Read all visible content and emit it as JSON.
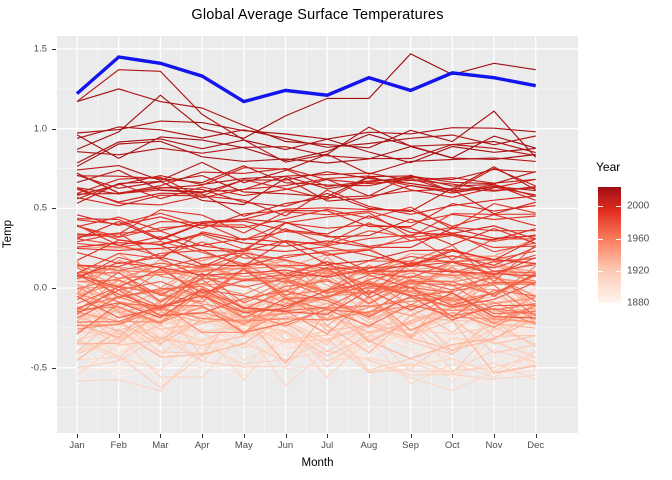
{
  "title": "Global Average Surface Temperatures",
  "axes": {
    "x_label": "Month",
    "y_label": "Temp",
    "x_ticks": [
      "Jan",
      "Feb",
      "Mar",
      "Apr",
      "May",
      "Jun",
      "Jul",
      "Aug",
      "Sep",
      "Oct",
      "Nov",
      "Dec"
    ],
    "y_ticks": [
      {
        "label": "1.5",
        "value": 1.5
      },
      {
        "label": "1.0",
        "value": 1.0
      },
      {
        "label": "0.5",
        "value": 0.5
      },
      {
        "label": "0.0",
        "value": 0.0
      },
      {
        "label": "-0.5",
        "value": -0.5
      }
    ],
    "y_minor_ticks": [
      1.25,
      0.75,
      0.25,
      -0.25,
      -0.75
    ]
  },
  "legend": {
    "title": "Year",
    "labels": [
      {
        "label": "2000",
        "year": 2000
      },
      {
        "label": "1960",
        "year": 1960
      },
      {
        "label": "1920",
        "year": 1920
      },
      {
        "label": "1880",
        "year": 1880
      }
    ],
    "year_min": 1880,
    "year_max": 2024
  },
  "colors": {
    "panel_bg": "#EBEBEB",
    "grid_major": "#FFFFFF",
    "grid_minor": "#F7F7F7",
    "tick_text": "#4D4D4D",
    "highlight": "#1414EE",
    "scale_stops": [
      {
        "t": 0.0,
        "hex": "#FFF5F0"
      },
      {
        "t": 0.3,
        "hex": "#FDC6B0"
      },
      {
        "t": 0.55,
        "hex": "#FB7C5C"
      },
      {
        "t": 0.8,
        "hex": "#E02C21"
      },
      {
        "t": 1.0,
        "hex": "#A00E13"
      }
    ]
  },
  "chart_data": {
    "type": "line",
    "categories": [
      "Jan",
      "Feb",
      "Mar",
      "Apr",
      "May",
      "Jun",
      "Jul",
      "Aug",
      "Sep",
      "Oct",
      "Nov",
      "Dec"
    ],
    "xlabel": "Month",
    "ylabel": "Temp",
    "ylim": [
      -0.91,
      1.58
    ],
    "grid": true,
    "legend_position": "right",
    "highlight_series": {
      "name": "current-year",
      "color": "#1414EE",
      "values": [
        1.22,
        1.45,
        1.41,
        1.33,
        1.17,
        1.24,
        1.21,
        1.32,
        1.24,
        1.35,
        1.32,
        1.27
      ]
    },
    "background_years": {
      "start": 1880,
      "end": 2023,
      "annual_values": [
        -0.17,
        -0.09,
        -0.11,
        -0.17,
        -0.28,
        -0.33,
        -0.31,
        -0.36,
        -0.18,
        -0.11,
        -0.35,
        -0.22,
        -0.27,
        -0.31,
        -0.31,
        -0.23,
        -0.11,
        -0.11,
        -0.27,
        -0.18,
        -0.08,
        -0.15,
        -0.28,
        -0.37,
        -0.46,
        -0.28,
        -0.22,
        -0.39,
        -0.43,
        -0.48,
        -0.43,
        -0.44,
        -0.36,
        -0.34,
        -0.15,
        -0.14,
        -0.36,
        -0.46,
        -0.3,
        -0.27,
        -0.27,
        -0.19,
        -0.28,
        -0.26,
        -0.27,
        -0.22,
        -0.1,
        -0.21,
        -0.2,
        -0.36,
        -0.16,
        -0.09,
        -0.16,
        -0.29,
        -0.13,
        -0.2,
        -0.15,
        -0.03,
        0.0,
        -0.02,
        0.13,
        0.18,
        0.07,
        0.09,
        0.2,
        0.09,
        -0.07,
        -0.03,
        -0.11,
        -0.11,
        -0.17,
        -0.07,
        0.01,
        0.08,
        -0.13,
        -0.14,
        -0.19,
        0.05,
        0.06,
        0.03,
        -0.03,
        0.06,
        0.03,
        0.05,
        -0.2,
        -0.11,
        -0.06,
        -0.02,
        -0.08,
        0.05,
        0.03,
        -0.08,
        0.01,
        0.16,
        -0.07,
        -0.01,
        -0.1,
        0.18,
        0.07,
        0.16,
        0.26,
        0.32,
        0.14,
        0.31,
        0.16,
        0.12,
        0.18,
        0.32,
        0.39,
        0.27,
        0.45,
        0.41,
        0.22,
        0.23,
        0.32,
        0.45,
        0.33,
        0.46,
        0.61,
        0.38,
        0.39,
        0.54,
        0.63,
        0.62,
        0.54,
        0.68,
        0.64,
        0.67,
        0.55,
        0.66,
        0.72,
        0.61,
        0.65,
        0.68,
        0.75,
        0.9,
        1.02,
        0.93,
        0.85,
        0.98,
        1.02,
        0.85,
        0.89,
        1.17
      ]
    },
    "monthly_overrides": {
      "2016": [
        1.17,
        1.37,
        1.36,
        1.09,
        0.93,
        0.79,
        0.84,
        1.01,
        0.89,
        0.9,
        0.92,
        0.85
      ],
      "2020": [
        1.17,
        1.25,
        1.17,
        1.13,
        1.02,
        0.92,
        0.9,
        0.88,
        0.99,
        0.92,
        1.11,
        0.82
      ],
      "2023": [
        0.87,
        0.98,
        1.21,
        1.0,
        0.94,
        1.08,
        1.19,
        1.19,
        1.47,
        1.34,
        1.41,
        1.37
      ]
    }
  }
}
